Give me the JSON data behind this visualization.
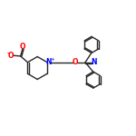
{
  "bg_color": "#ffffff",
  "atom_colors": {
    "O": "#ff0000",
    "N": "#0000ff",
    "C": "#282828",
    "H": "#282828"
  },
  "bond_color": "#282828",
  "line_width": 1.0,
  "fig_width": 1.5,
  "fig_height": 1.5,
  "dpi": 100,
  "xlim": [
    -1.5,
    10.5
  ],
  "ylim": [
    0.0,
    10.0
  ]
}
